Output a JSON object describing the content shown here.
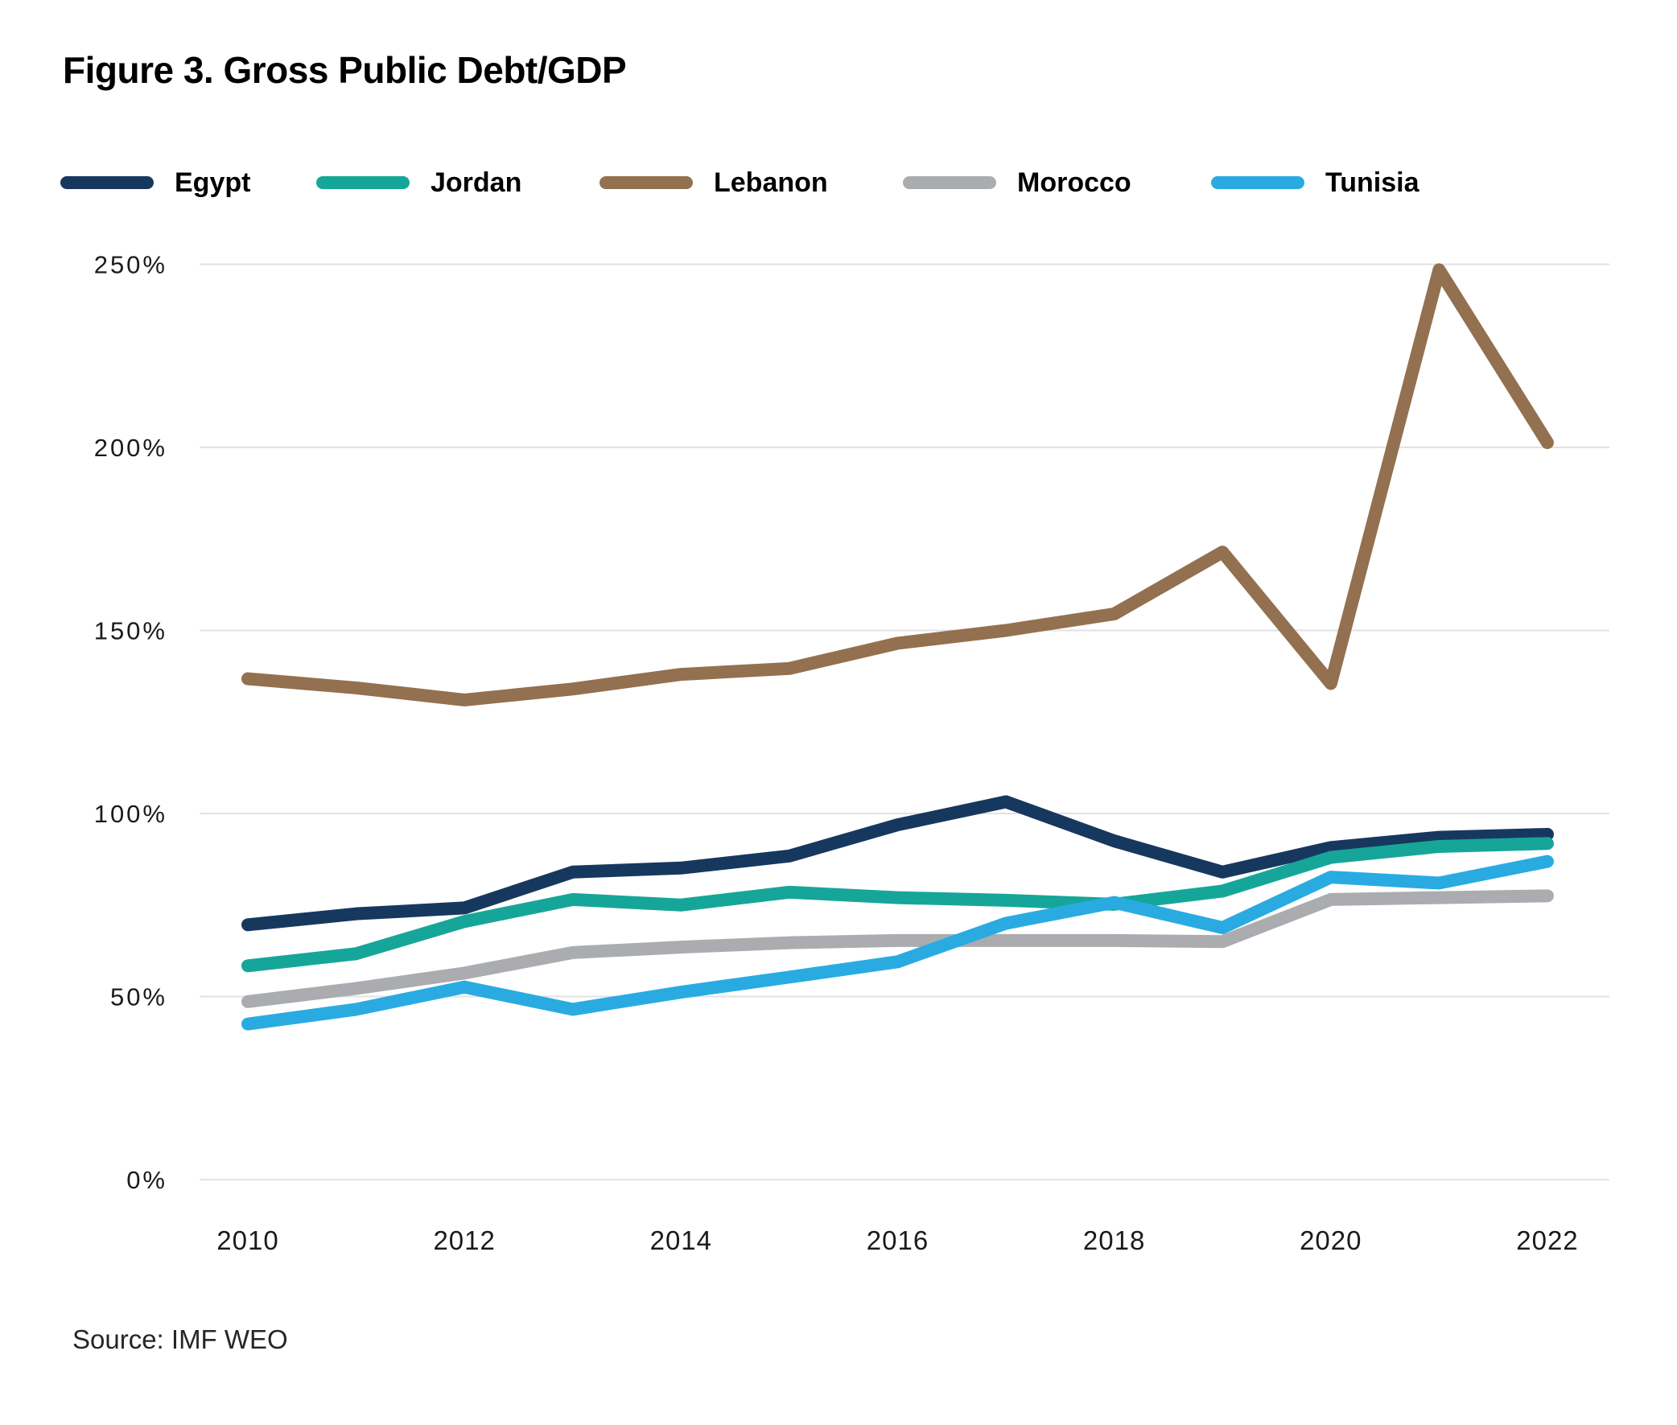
{
  "figure": {
    "title": "Figure 3. Gross Public Debt/GDP",
    "source": "Source: IMF WEO"
  },
  "chart_data": {
    "type": "line",
    "title": "Figure 3. Gross Public Debt/GDP",
    "x": [
      2010,
      2011,
      2012,
      2013,
      2014,
      2015,
      2016,
      2017,
      2018,
      2019,
      2020,
      2021,
      2022
    ],
    "x_axis": {
      "tick_labels": [
        "2010",
        "2012",
        "2014",
        "2016",
        "2018",
        "2020",
        "2022"
      ],
      "tick_years": [
        2010,
        2012,
        2014,
        2016,
        2018,
        2020,
        2022
      ]
    },
    "y_axis": {
      "unit": "%",
      "min": 0,
      "max": 250,
      "tick_interval": 50,
      "tick_labels": [
        "250%",
        "200%",
        "150%",
        "100%",
        "50%",
        "0%"
      ],
      "tick_values": [
        250,
        200,
        150,
        100,
        50,
        0
      ]
    },
    "grid": {
      "horizontal": true,
      "vertical": false,
      "color": "#e2e2e2"
    },
    "legend": {
      "position": "top",
      "entries": [
        "Egypt",
        "Jordan",
        "Lebanon",
        "Morocco",
        "Tunisia"
      ]
    },
    "series": [
      {
        "name": "Egypt",
        "color": "#17385e",
        "values": [
          69.6,
          72.6,
          74.2,
          84.0,
          85.1,
          88.4,
          96.9,
          103.2,
          92.5,
          84.0,
          90.7,
          93.5,
          94.3
        ]
      },
      {
        "name": "Jordan",
        "color": "#16a699",
        "values": [
          58.4,
          61.7,
          70.5,
          76.5,
          75.0,
          78.5,
          77.0,
          76.3,
          75.2,
          78.8,
          88.0,
          91.0,
          91.8
        ]
      },
      {
        "name": "Lebanon",
        "color": "#93704f",
        "values": [
          136.8,
          134.3,
          131.0,
          134.0,
          138.0,
          139.6,
          146.5,
          150.0,
          154.5,
          171.4,
          135.5,
          248.5,
          201.3
        ]
      },
      {
        "name": "Morocco",
        "color": "#aaacaf",
        "values": [
          48.6,
          52.2,
          56.4,
          62.0,
          63.5,
          64.7,
          65.3,
          65.3,
          65.3,
          65.0,
          76.5,
          77.0,
          77.5
        ]
      },
      {
        "name": "Tunisia",
        "color": "#29abe2",
        "values": [
          42.5,
          46.5,
          52.6,
          46.5,
          51.2,
          55.3,
          59.5,
          70.0,
          75.7,
          68.8,
          82.6,
          81.0,
          86.9
        ]
      }
    ]
  }
}
